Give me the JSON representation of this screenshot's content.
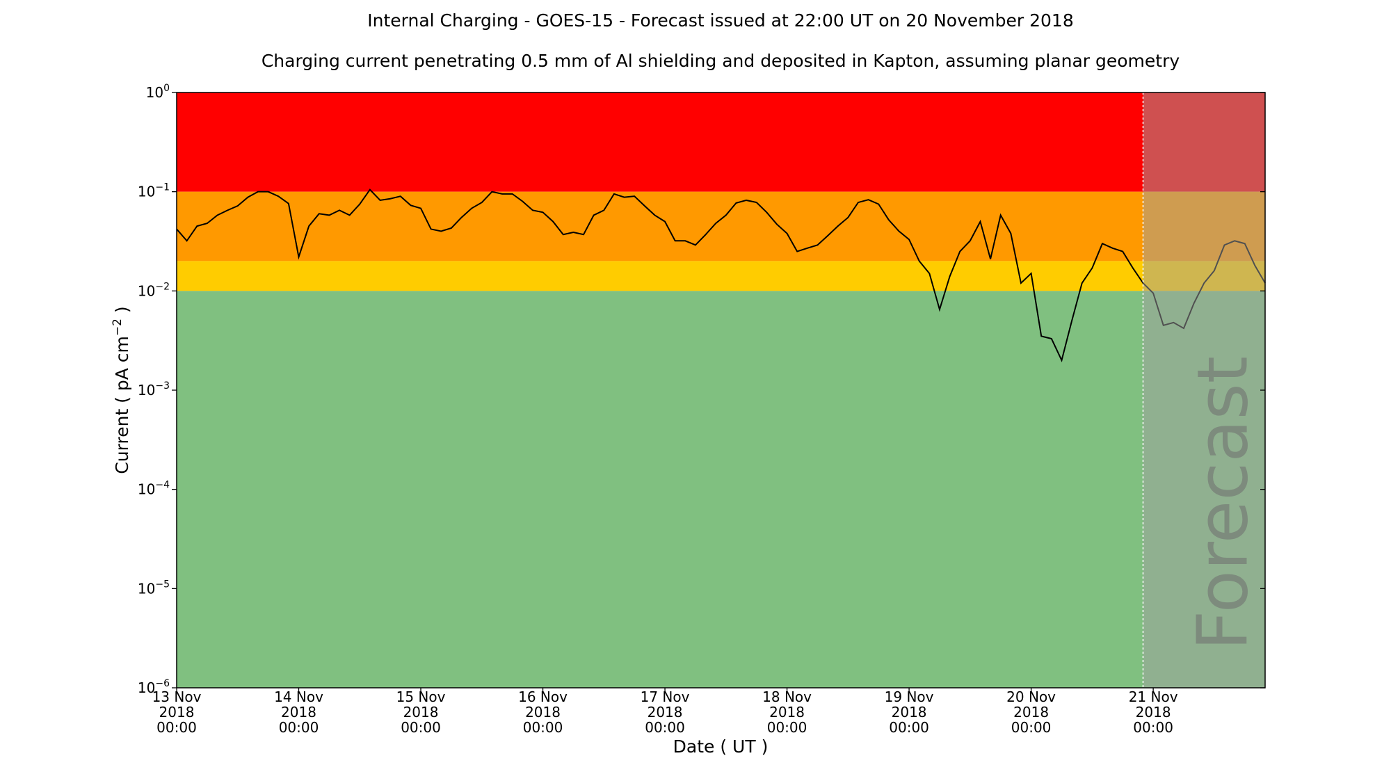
{
  "chart_data": {
    "type": "line",
    "title": "Internal Charging - GOES-15 - Forecast issued at 22:00 UT on 20 November 2018",
    "subtitle": "Charging current penetrating 0.5 mm of Al shielding and deposited in Kapton, assuming planar geometry",
    "x_label": "Date ( UT )",
    "y_label": [
      "Current ( pA cm",
      "−2",
      " )"
    ],
    "yscale": "log",
    "color": "#000000",
    "xlim": [
      "2018-11-13T00:00",
      "2018-11-21T22:00"
    ],
    "ylim": [
      1e-06,
      1
    ],
    "xticks": [
      {
        "value": "2018-11-13T00:00",
        "label": [
          "13 Nov",
          "2018",
          "00:00"
        ]
      },
      {
        "value": "2018-11-14T00:00",
        "label": [
          "14 Nov",
          "2018",
          "00:00"
        ]
      },
      {
        "value": "2018-11-15T00:00",
        "label": [
          "15 Nov",
          "2018",
          "00:00"
        ]
      },
      {
        "value": "2018-11-16T00:00",
        "label": [
          "16 Nov",
          "2018",
          "00:00"
        ]
      },
      {
        "value": "2018-11-17T00:00",
        "label": [
          "17 Nov",
          "2018",
          "00:00"
        ]
      },
      {
        "value": "2018-11-18T00:00",
        "label": [
          "18 Nov",
          "2018",
          "00:00"
        ]
      },
      {
        "value": "2018-11-19T00:00",
        "label": [
          "19 Nov",
          "2018",
          "00:00"
        ]
      },
      {
        "value": "2018-11-20T00:00",
        "label": [
          "20 Nov",
          "2018",
          "00:00"
        ]
      },
      {
        "value": "2018-11-21T00:00",
        "label": [
          "21 Nov",
          "2018",
          "00:00"
        ]
      }
    ],
    "yticks": [
      {
        "value": 1e-06,
        "label": [
          "10",
          "−6"
        ]
      },
      {
        "value": 1e-05,
        "label": [
          "10",
          "−5"
        ]
      },
      {
        "value": 0.0001,
        "label": [
          "10",
          "−4"
        ]
      },
      {
        "value": 0.001,
        "label": [
          "10",
          "−3"
        ]
      },
      {
        "value": 0.01,
        "label": [
          "10",
          "−2"
        ]
      },
      {
        "value": 0.1,
        "label": [
          "10",
          "−1"
        ]
      },
      {
        "value": 1,
        "label": [
          "10",
          "0"
        ]
      }
    ],
    "bands": [
      {
        "from": 0.1,
        "to": 1,
        "color": "#ff0000"
      },
      {
        "from": 0.02,
        "to": 0.1,
        "color": "#ff9900"
      },
      {
        "from": 0.01,
        "to": 0.02,
        "color": "#ffcc00"
      },
      {
        "from": 1e-06,
        "to": 0.01,
        "color": "#80c080"
      }
    ],
    "forecast": {
      "start": "2018-11-20T22:00",
      "label": "Forecast",
      "shade": "rgba(160,160,160,0.5)"
    },
    "x": [
      "2018-11-13T00:00",
      "2018-11-13T02:00",
      "2018-11-13T04:00",
      "2018-11-13T06:00",
      "2018-11-13T08:00",
      "2018-11-13T10:00",
      "2018-11-13T12:00",
      "2018-11-13T14:00",
      "2018-11-13T16:00",
      "2018-11-13T18:00",
      "2018-11-13T20:00",
      "2018-11-13T22:00",
      "2018-11-14T00:00",
      "2018-11-14T02:00",
      "2018-11-14T04:00",
      "2018-11-14T06:00",
      "2018-11-14T08:00",
      "2018-11-14T10:00",
      "2018-11-14T12:00",
      "2018-11-14T14:00",
      "2018-11-14T16:00",
      "2018-11-14T18:00",
      "2018-11-14T20:00",
      "2018-11-14T22:00",
      "2018-11-15T00:00",
      "2018-11-15T02:00",
      "2018-11-15T04:00",
      "2018-11-15T06:00",
      "2018-11-15T08:00",
      "2018-11-15T10:00",
      "2018-11-15T12:00",
      "2018-11-15T14:00",
      "2018-11-15T16:00",
      "2018-11-15T18:00",
      "2018-11-15T20:00",
      "2018-11-15T22:00",
      "2018-11-16T00:00",
      "2018-11-16T02:00",
      "2018-11-16T04:00",
      "2018-11-16T06:00",
      "2018-11-16T08:00",
      "2018-11-16T10:00",
      "2018-11-16T12:00",
      "2018-11-16T14:00",
      "2018-11-16T16:00",
      "2018-11-16T18:00",
      "2018-11-16T20:00",
      "2018-11-16T22:00",
      "2018-11-17T00:00",
      "2018-11-17T02:00",
      "2018-11-17T04:00",
      "2018-11-17T06:00",
      "2018-11-17T08:00",
      "2018-11-17T10:00",
      "2018-11-17T12:00",
      "2018-11-17T14:00",
      "2018-11-17T16:00",
      "2018-11-17T18:00",
      "2018-11-17T20:00",
      "2018-11-17T22:00",
      "2018-11-18T00:00",
      "2018-11-18T02:00",
      "2018-11-18T04:00",
      "2018-11-18T06:00",
      "2018-11-18T08:00",
      "2018-11-18T10:00",
      "2018-11-18T12:00",
      "2018-11-18T14:00",
      "2018-11-18T16:00",
      "2018-11-18T18:00",
      "2018-11-18T20:00",
      "2018-11-18T22:00",
      "2018-11-19T00:00",
      "2018-11-19T02:00",
      "2018-11-19T04:00",
      "2018-11-19T06:00",
      "2018-11-19T08:00",
      "2018-11-19T10:00",
      "2018-11-19T12:00",
      "2018-11-19T14:00",
      "2018-11-19T16:00",
      "2018-11-19T18:00",
      "2018-11-19T20:00",
      "2018-11-19T22:00",
      "2018-11-20T00:00",
      "2018-11-20T02:00",
      "2018-11-20T04:00",
      "2018-11-20T06:00",
      "2018-11-20T08:00",
      "2018-11-20T10:00",
      "2018-11-20T12:00",
      "2018-11-20T14:00",
      "2018-11-20T16:00",
      "2018-11-20T18:00",
      "2018-11-20T20:00",
      "2018-11-20T22:00",
      "2018-11-21T00:00",
      "2018-11-21T02:00",
      "2018-11-21T04:00",
      "2018-11-21T06:00",
      "2018-11-21T08:00",
      "2018-11-21T10:00",
      "2018-11-21T12:00",
      "2018-11-21T14:00",
      "2018-11-21T16:00",
      "2018-11-21T18:00",
      "2018-11-21T20:00",
      "2018-11-21T22:00"
    ],
    "values": [
      0.042,
      0.032,
      0.045,
      0.048,
      0.058,
      0.065,
      0.072,
      0.088,
      0.1,
      0.1,
      0.09,
      0.076,
      0.022,
      0.045,
      0.06,
      0.058,
      0.065,
      0.058,
      0.075,
      0.105,
      0.082,
      0.085,
      0.09,
      0.073,
      0.068,
      0.042,
      0.04,
      0.043,
      0.055,
      0.068,
      0.078,
      0.1,
      0.095,
      0.095,
      0.08,
      0.065,
      0.062,
      0.05,
      0.037,
      0.039,
      0.037,
      0.058,
      0.065,
      0.095,
      0.088,
      0.09,
      0.072,
      0.058,
      0.05,
      0.032,
      0.032,
      0.029,
      0.037,
      0.048,
      0.058,
      0.077,
      0.082,
      0.078,
      0.062,
      0.047,
      0.038,
      0.025,
      0.027,
      0.029,
      0.036,
      0.045,
      0.055,
      0.078,
      0.083,
      0.075,
      0.052,
      0.04,
      0.033,
      0.02,
      0.015,
      0.0065,
      0.014,
      0.025,
      0.032,
      0.05,
      0.021,
      0.058,
      0.038,
      0.012,
      0.015,
      0.0035,
      0.0033,
      0.002,
      0.005,
      0.012,
      0.017,
      0.03,
      0.027,
      0.025,
      0.017,
      0.012,
      0.0095,
      0.0045,
      0.0048,
      0.0042,
      0.0075,
      0.012,
      0.016,
      0.029,
      0.032,
      0.03,
      0.018,
      0.012
    ]
  }
}
